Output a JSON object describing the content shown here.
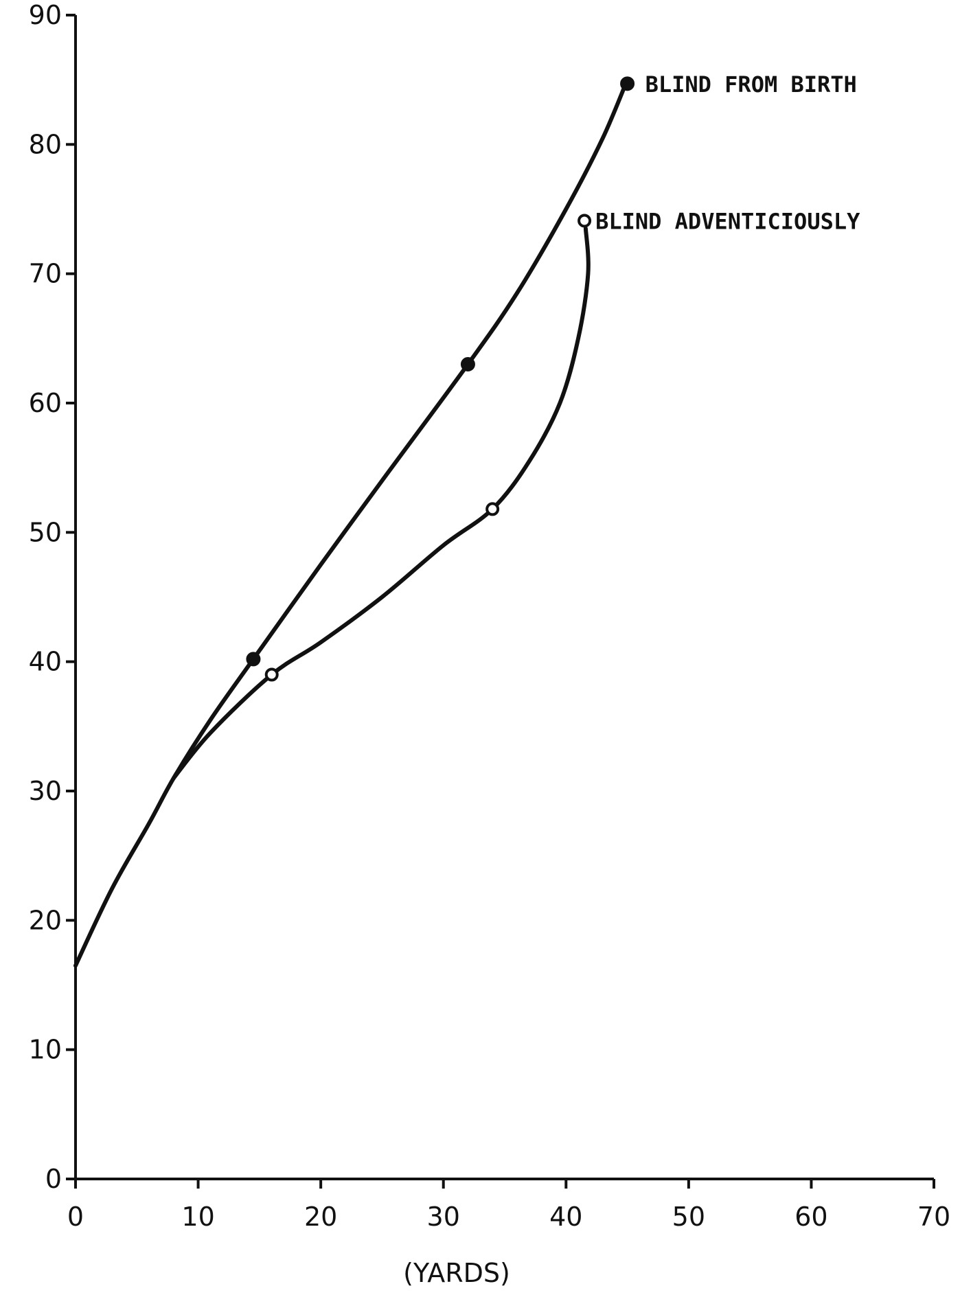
{
  "chart_data": {
    "type": "line",
    "title": "",
    "xlabel": "(YARDS)",
    "ylabel": "",
    "xlim": [
      0,
      70
    ],
    "ylim": [
      0,
      90
    ],
    "x_ticks": [
      0,
      10,
      20,
      30,
      40,
      50,
      60,
      70
    ],
    "y_ticks": [
      0,
      10,
      20,
      30,
      40,
      50,
      60,
      70,
      80,
      90
    ],
    "grid": false,
    "legend": "inline labels at line ends",
    "series": [
      {
        "name": "BLIND FROM BIRTH",
        "marker": "filled-circle",
        "curve": [
          [
            0,
            16.5
          ],
          [
            3,
            22.5
          ],
          [
            6,
            27.5
          ],
          [
            8,
            31
          ],
          [
            11,
            35.5
          ],
          [
            14.5,
            40.2
          ],
          [
            20,
            47.5
          ],
          [
            25,
            54
          ],
          [
            32,
            63
          ],
          [
            36,
            68.5
          ],
          [
            40,
            75
          ],
          [
            43,
            80.5
          ],
          [
            45,
            85
          ]
        ],
        "points": [
          [
            14.5,
            40.2
          ],
          [
            32,
            63
          ],
          [
            45,
            84.7
          ]
        ]
      },
      {
        "name": "BLIND ADVENTICIOUSLY",
        "marker": "open-circle",
        "curve": [
          [
            8,
            31
          ],
          [
            11,
            34.5
          ],
          [
            16,
            39
          ],
          [
            20,
            41.5
          ],
          [
            25,
            45
          ],
          [
            30,
            49
          ],
          [
            34,
            51.8
          ],
          [
            37,
            55.5
          ],
          [
            39.5,
            60
          ],
          [
            41,
            65
          ],
          [
            41.8,
            70
          ],
          [
            41.6,
            73.5
          ]
        ],
        "points": [
          [
            16,
            39
          ],
          [
            34,
            51.8
          ],
          [
            41.5,
            74.1
          ]
        ]
      }
    ]
  }
}
